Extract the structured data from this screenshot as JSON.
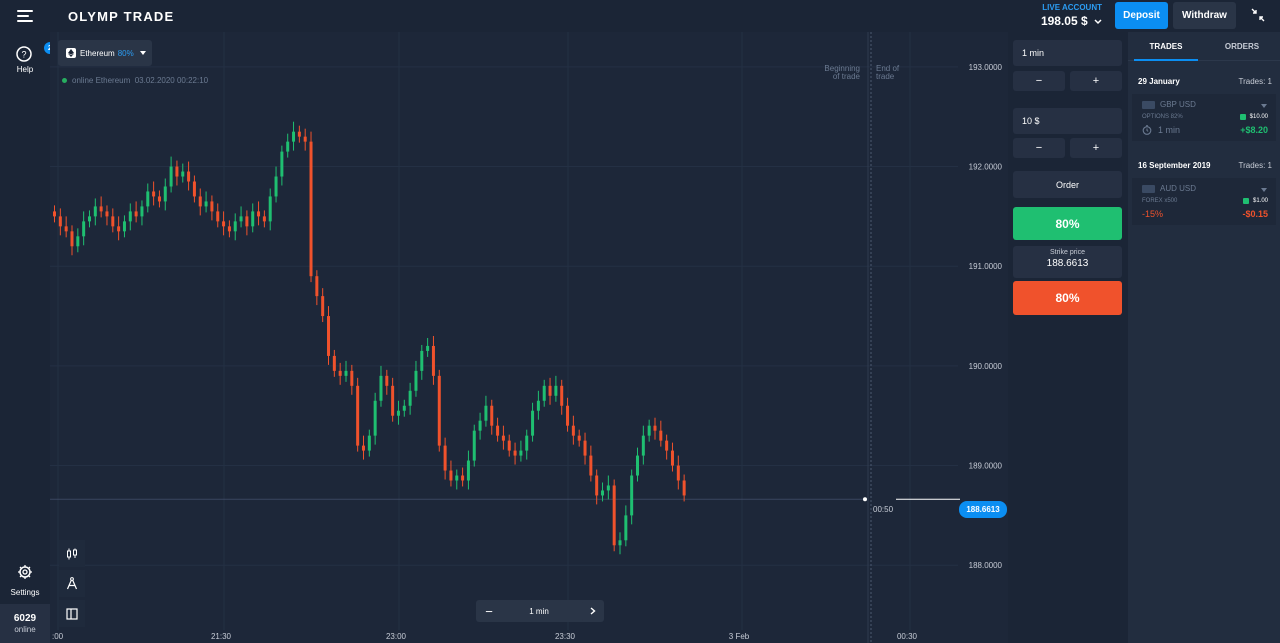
{
  "header": {
    "logo": "OLYMP TRADE",
    "account_label": "LIVE ACCOUNT",
    "balance": "198.05 $",
    "deposit": "Deposit",
    "withdraw": "Withdraw"
  },
  "nav": {
    "help_label": "Help",
    "help_badge": "2",
    "settings_label": "Settings",
    "online_count": "6029",
    "online_label": "online"
  },
  "chart": {
    "asset": "Ethereum",
    "asset_pct": "80%",
    "status": "online Ethereum  03.02.2020 00:22:10",
    "begin_trade": "Beginning\nof trade",
    "end_trade": "End of\ntrade",
    "price_tag": "188.6613",
    "timer": "00:50",
    "timeframe": "1 min",
    "y_ticks": [
      "193.0000",
      "192.0000",
      "191.0000",
      "190.0000",
      "189.0000",
      "188.0000"
    ],
    "x_ticks": [
      ":00",
      "21:30",
      "23:00",
      "23:30",
      "3 Feb",
      "00:30"
    ]
  },
  "chart_data": {
    "type": "candlestick",
    "ylim": [
      187.35,
      193.35
    ],
    "y_ticks": [
      193,
      192,
      191,
      190,
      189,
      188
    ],
    "current_price": 188.6613,
    "closes": [
      191.5,
      191.4,
      191.35,
      191.2,
      191.3,
      191.45,
      191.5,
      191.6,
      191.55,
      191.5,
      191.4,
      191.35,
      191.45,
      191.55,
      191.5,
      191.6,
      191.75,
      191.7,
      191.65,
      191.8,
      192.0,
      191.9,
      191.95,
      191.85,
      191.7,
      191.6,
      191.65,
      191.55,
      191.45,
      191.4,
      191.35,
      191.45,
      191.5,
      191.4,
      191.55,
      191.5,
      191.45,
      191.7,
      191.9,
      192.15,
      192.25,
      192.35,
      192.3,
      192.25,
      190.9,
      190.7,
      190.5,
      190.1,
      189.95,
      189.9,
      189.95,
      189.8,
      189.2,
      189.15,
      189.3,
      189.65,
      189.9,
      189.8,
      189.5,
      189.55,
      189.6,
      189.75,
      189.95,
      190.15,
      190.2,
      189.9,
      189.2,
      188.95,
      188.85,
      188.9,
      188.85,
      189.05,
      189.35,
      189.45,
      189.6,
      189.4,
      189.3,
      189.25,
      189.15,
      189.1,
      189.15,
      189.3,
      189.55,
      189.65,
      189.8,
      189.7,
      189.8,
      189.6,
      189.4,
      189.3,
      189.25,
      189.1,
      188.9,
      188.7,
      188.75,
      188.8,
      188.2,
      188.25,
      188.5,
      188.9,
      189.1,
      189.3,
      189.4,
      189.35,
      189.25,
      189.15,
      189.0,
      188.85,
      188.7
    ]
  },
  "panel": {
    "duration": "1 min",
    "amount": "10 $",
    "minus": "−",
    "plus": "+",
    "order": "Order",
    "up_pct": "80%",
    "strike_label": "Strike price",
    "strike_value": "188.6613",
    "down_pct": "80%"
  },
  "trades": {
    "tab_trades": "TRADES",
    "tab_orders": "ORDERS",
    "groups": [
      {
        "date": "29 January",
        "count": "Trades: 1",
        "pair": "GBP USD",
        "kind": "OPTIONS 82%",
        "amount": "$10.00",
        "left": "1 min",
        "result": "+$8.20"
      },
      {
        "date": "16 September 2019",
        "count": "Trades: 1",
        "pair": "AUD USD",
        "kind": "FOREX x500",
        "amount": "$1.00",
        "left": "-15%",
        "result": "-$0.15"
      }
    ]
  }
}
